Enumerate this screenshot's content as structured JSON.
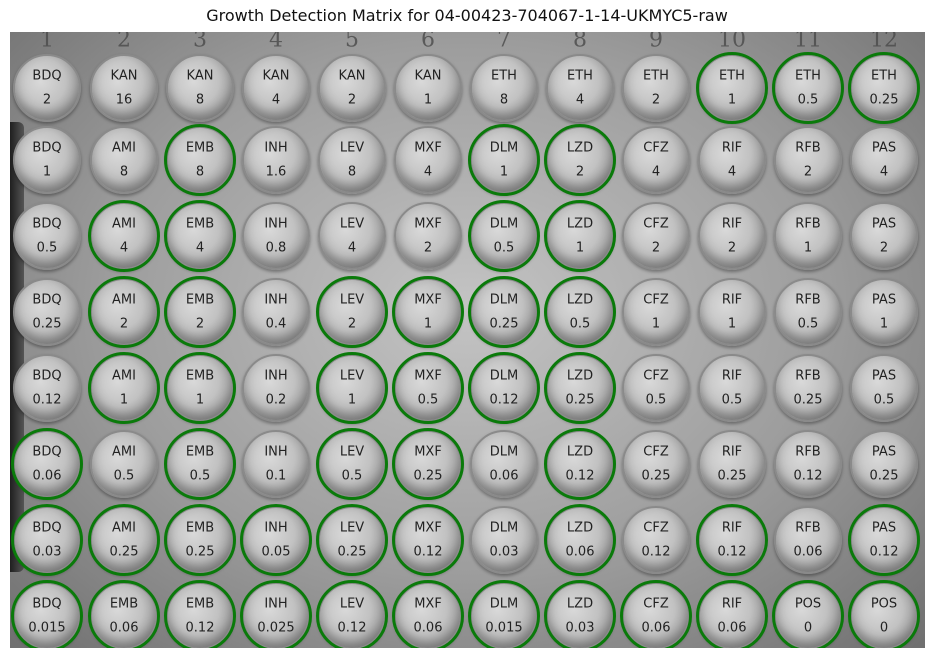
{
  "title": "Growth Detection Matrix for 04-00423-704067-1-14-UKMYC5-raw",
  "growth_ring_color": "#0a7a0a",
  "column_numbers": [
    "1",
    "2",
    "3",
    "4",
    "5",
    "6",
    "7",
    "8",
    "9",
    "10",
    "11",
    "12"
  ],
  "rows": [
    [
      {
        "drug": "BDQ",
        "conc": "2",
        "growth": false
      },
      {
        "drug": "KAN",
        "conc": "16",
        "growth": false
      },
      {
        "drug": "KAN",
        "conc": "8",
        "growth": false
      },
      {
        "drug": "KAN",
        "conc": "4",
        "growth": false
      },
      {
        "drug": "KAN",
        "conc": "2",
        "growth": false
      },
      {
        "drug": "KAN",
        "conc": "1",
        "growth": false
      },
      {
        "drug": "ETH",
        "conc": "8",
        "growth": false
      },
      {
        "drug": "ETH",
        "conc": "4",
        "growth": false
      },
      {
        "drug": "ETH",
        "conc": "2",
        "growth": false
      },
      {
        "drug": "ETH",
        "conc": "1",
        "growth": true
      },
      {
        "drug": "ETH",
        "conc": "0.5",
        "growth": true
      },
      {
        "drug": "ETH",
        "conc": "0.25",
        "growth": true
      }
    ],
    [
      {
        "drug": "BDQ",
        "conc": "1",
        "growth": false
      },
      {
        "drug": "AMI",
        "conc": "8",
        "growth": false
      },
      {
        "drug": "EMB",
        "conc": "8",
        "growth": true
      },
      {
        "drug": "INH",
        "conc": "1.6",
        "growth": false
      },
      {
        "drug": "LEV",
        "conc": "8",
        "growth": false
      },
      {
        "drug": "MXF",
        "conc": "4",
        "growth": false
      },
      {
        "drug": "DLM",
        "conc": "1",
        "growth": true
      },
      {
        "drug": "LZD",
        "conc": "2",
        "growth": true
      },
      {
        "drug": "CFZ",
        "conc": "4",
        "growth": false
      },
      {
        "drug": "RIF",
        "conc": "4",
        "growth": false
      },
      {
        "drug": "RFB",
        "conc": "2",
        "growth": false
      },
      {
        "drug": "PAS",
        "conc": "4",
        "growth": false
      }
    ],
    [
      {
        "drug": "BDQ",
        "conc": "0.5",
        "growth": false
      },
      {
        "drug": "AMI",
        "conc": "4",
        "growth": true
      },
      {
        "drug": "EMB",
        "conc": "4",
        "growth": true
      },
      {
        "drug": "INH",
        "conc": "0.8",
        "growth": false
      },
      {
        "drug": "LEV",
        "conc": "4",
        "growth": false
      },
      {
        "drug": "MXF",
        "conc": "2",
        "growth": false
      },
      {
        "drug": "DLM",
        "conc": "0.5",
        "growth": true
      },
      {
        "drug": "LZD",
        "conc": "1",
        "growth": true
      },
      {
        "drug": "CFZ",
        "conc": "2",
        "growth": false
      },
      {
        "drug": "RIF",
        "conc": "2",
        "growth": false
      },
      {
        "drug": "RFB",
        "conc": "1",
        "growth": false
      },
      {
        "drug": "PAS",
        "conc": "2",
        "growth": false
      }
    ],
    [
      {
        "drug": "BDQ",
        "conc": "0.25",
        "growth": false
      },
      {
        "drug": "AMI",
        "conc": "2",
        "growth": true
      },
      {
        "drug": "EMB",
        "conc": "2",
        "growth": true
      },
      {
        "drug": "INH",
        "conc": "0.4",
        "growth": false
      },
      {
        "drug": "LEV",
        "conc": "2",
        "growth": true
      },
      {
        "drug": "MXF",
        "conc": "1",
        "growth": true
      },
      {
        "drug": "DLM",
        "conc": "0.25",
        "growth": true
      },
      {
        "drug": "LZD",
        "conc": "0.5",
        "growth": true
      },
      {
        "drug": "CFZ",
        "conc": "1",
        "growth": false
      },
      {
        "drug": "RIF",
        "conc": "1",
        "growth": false
      },
      {
        "drug": "RFB",
        "conc": "0.5",
        "growth": false
      },
      {
        "drug": "PAS",
        "conc": "1",
        "growth": false
      }
    ],
    [
      {
        "drug": "BDQ",
        "conc": "0.12",
        "growth": false
      },
      {
        "drug": "AMI",
        "conc": "1",
        "growth": true
      },
      {
        "drug": "EMB",
        "conc": "1",
        "growth": true
      },
      {
        "drug": "INH",
        "conc": "0.2",
        "growth": false
      },
      {
        "drug": "LEV",
        "conc": "1",
        "growth": true
      },
      {
        "drug": "MXF",
        "conc": "0.5",
        "growth": true
      },
      {
        "drug": "DLM",
        "conc": "0.12",
        "growth": true
      },
      {
        "drug": "LZD",
        "conc": "0.25",
        "growth": true
      },
      {
        "drug": "CFZ",
        "conc": "0.5",
        "growth": false
      },
      {
        "drug": "RIF",
        "conc": "0.5",
        "growth": false
      },
      {
        "drug": "RFB",
        "conc": "0.25",
        "growth": false
      },
      {
        "drug": "PAS",
        "conc": "0.5",
        "growth": false
      }
    ],
    [
      {
        "drug": "BDQ",
        "conc": "0.06",
        "growth": true
      },
      {
        "drug": "AMI",
        "conc": "0.5",
        "growth": false
      },
      {
        "drug": "EMB",
        "conc": "0.5",
        "growth": true
      },
      {
        "drug": "INH",
        "conc": "0.1",
        "growth": false
      },
      {
        "drug": "LEV",
        "conc": "0.5",
        "growth": true
      },
      {
        "drug": "MXF",
        "conc": "0.25",
        "growth": true
      },
      {
        "drug": "DLM",
        "conc": "0.06",
        "growth": false
      },
      {
        "drug": "LZD",
        "conc": "0.12",
        "growth": true
      },
      {
        "drug": "CFZ",
        "conc": "0.25",
        "growth": false
      },
      {
        "drug": "RIF",
        "conc": "0.25",
        "growth": false
      },
      {
        "drug": "RFB",
        "conc": "0.12",
        "growth": false
      },
      {
        "drug": "PAS",
        "conc": "0.25",
        "growth": false
      }
    ],
    [
      {
        "drug": "BDQ",
        "conc": "0.03",
        "growth": true
      },
      {
        "drug": "AMI",
        "conc": "0.25",
        "growth": true
      },
      {
        "drug": "EMB",
        "conc": "0.25",
        "growth": true
      },
      {
        "drug": "INH",
        "conc": "0.05",
        "growth": true
      },
      {
        "drug": "LEV",
        "conc": "0.25",
        "growth": true
      },
      {
        "drug": "MXF",
        "conc": "0.12",
        "growth": true
      },
      {
        "drug": "DLM",
        "conc": "0.03",
        "growth": false
      },
      {
        "drug": "LZD",
        "conc": "0.06",
        "growth": true
      },
      {
        "drug": "CFZ",
        "conc": "0.12",
        "growth": false
      },
      {
        "drug": "RIF",
        "conc": "0.12",
        "growth": true
      },
      {
        "drug": "RFB",
        "conc": "0.06",
        "growth": false
      },
      {
        "drug": "PAS",
        "conc": "0.12",
        "growth": true
      }
    ],
    [
      {
        "drug": "BDQ",
        "conc": "0.015",
        "growth": true
      },
      {
        "drug": "EMB",
        "conc": "0.06",
        "growth": true
      },
      {
        "drug": "EMB",
        "conc": "0.12",
        "growth": true
      },
      {
        "drug": "INH",
        "conc": "0.025",
        "growth": true
      },
      {
        "drug": "LEV",
        "conc": "0.12",
        "growth": true
      },
      {
        "drug": "MXF",
        "conc": "0.06",
        "growth": true
      },
      {
        "drug": "DLM",
        "conc": "0.015",
        "growth": true
      },
      {
        "drug": "LZD",
        "conc": "0.03",
        "growth": true
      },
      {
        "drug": "CFZ",
        "conc": "0.06",
        "growth": true
      },
      {
        "drug": "RIF",
        "conc": "0.06",
        "growth": true
      },
      {
        "drug": "POS",
        "conc": "0",
        "growth": true
      },
      {
        "drug": "POS",
        "conc": "0",
        "growth": true
      }
    ]
  ]
}
